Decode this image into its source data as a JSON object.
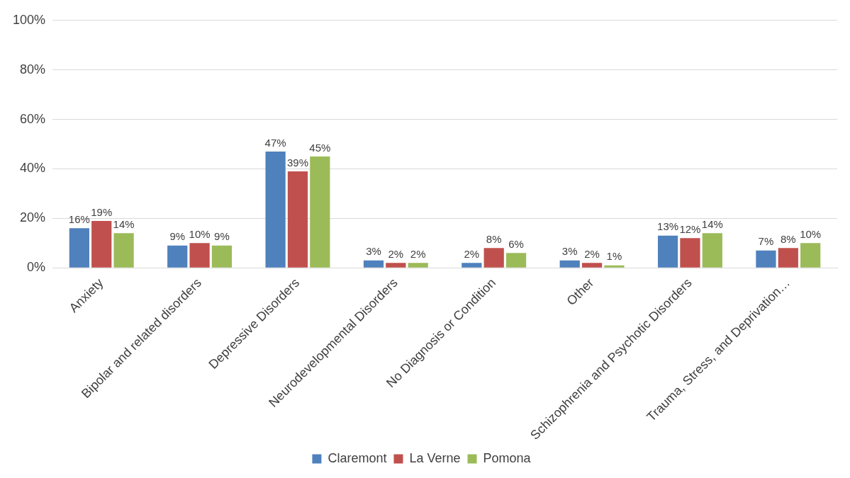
{
  "chart_data": {
    "type": "bar",
    "categories": [
      "Anxiety",
      "Bipolar and related disorders",
      "Depressive Disorders",
      "Neurodevelopmental Disorders",
      "No Diagnosis or Condition",
      "Other",
      "Schizophrenia and Psychotic Disorders",
      "Trauma, Stress, and Deprivation…"
    ],
    "series": [
      {
        "name": "Claremont",
        "color": "#4f81bd",
        "values": [
          16,
          9,
          47,
          3,
          2,
          3,
          13,
          7
        ],
        "value_labels": [
          "16%",
          "9%",
          "47%",
          "3%",
          "2%",
          "3%",
          "13%",
          "7%"
        ]
      },
      {
        "name": "La Verne",
        "color": "#c0504d",
        "values": [
          19,
          10,
          39,
          2,
          8,
          2,
          12,
          8
        ],
        "value_labels": [
          "19%",
          "10%",
          "39%",
          "2%",
          "8%",
          "2%",
          "12%",
          "8%"
        ]
      },
      {
        "name": "Pomona",
        "color": "#9bbb59",
        "values": [
          14,
          9,
          45,
          2,
          6,
          1,
          14,
          10
        ],
        "value_labels": [
          "14%",
          "9%",
          "45%",
          "2%",
          "6%",
          "1%",
          "14%",
          "10%"
        ]
      }
    ],
    "ylim": [
      0,
      100
    ],
    "yticks": [
      {
        "value": 0,
        "label": "0%"
      },
      {
        "value": 20,
        "label": "20%"
      },
      {
        "value": 40,
        "label": "40%"
      },
      {
        "value": 60,
        "label": "60%"
      },
      {
        "value": 80,
        "label": "80%"
      },
      {
        "value": 100,
        "label": "100%"
      }
    ],
    "grid": "y",
    "legend": "bottom"
  }
}
